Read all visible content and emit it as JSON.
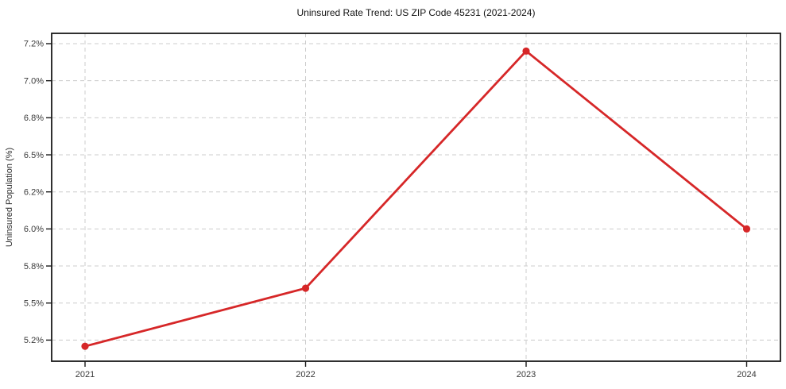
{
  "chart_data": {
    "type": "line",
    "title": "Uninsured Rate Trend: US ZIP Code 45231 (2021-2024)",
    "xlabel": "",
    "ylabel": "Uninsured Population (%)",
    "categories": [
      "2021",
      "2022",
      "2023",
      "2024"
    ],
    "values": [
      5.15,
      5.62,
      7.16,
      6.0
    ],
    "y_ticks": {
      "values": [
        5.2,
        5.5,
        5.8,
        6.0,
        6.2,
        6.5,
        6.8,
        7.0,
        7.2
      ],
      "labels": [
        "5.2%",
        "5.5%",
        "5.8%",
        "6.0%",
        "6.2%",
        "6.5%",
        "6.8%",
        "7.0%",
        "7.2%"
      ]
    },
    "grid": true,
    "grid_style": "dashed",
    "legend": "none",
    "marker": "circle",
    "colors": {
      "line": "#d62728",
      "marker": "#d62728",
      "grid": "#cccccc",
      "axis": "#1a1a1a",
      "tick_label": "#3a3a3a",
      "title": "#141414",
      "background": "#ffffff"
    }
  }
}
